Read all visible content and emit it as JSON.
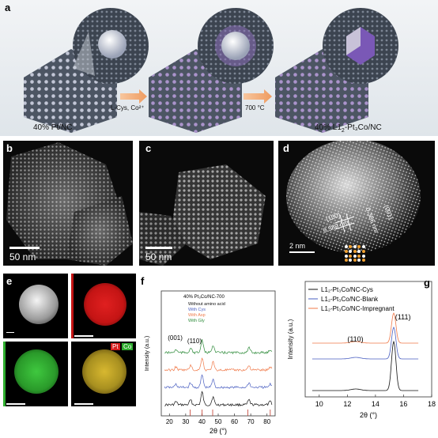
{
  "panel_a": {
    "letter": "a",
    "arrow1_label": "L-Cys, Co²⁺",
    "arrow2_label": "700 °C",
    "left_caption": "40% Pt/NC",
    "right_caption_pre": "40% L1",
    "right_caption_sub": "2",
    "right_caption_post": "-Pt₃Co/NC"
  },
  "panel_b": {
    "letter": "b",
    "scale": "50 nm"
  },
  "panel_c": {
    "letter": "c",
    "scale": "50 nm"
  },
  "panel_d": {
    "letter": "d",
    "scale": "2 nm",
    "plane1": "(100)",
    "plane2": "(001)",
    "d1": "0.389 nm",
    "d2": "0.386 nm"
  },
  "panel_e": {
    "letter": "e",
    "legend_pt": "Pt",
    "legend_co": "Co"
  },
  "panel_f": {
    "letter": "f",
    "peak_labels": [
      "(001)",
      "(110)"
    ],
    "chart_data": {
      "type": "line",
      "title": "40% Pt₃Co/NC-700",
      "xlabel": "2θ (°)",
      "ylabel": "Intensity (a.u.)",
      "xlim": [
        15,
        85
      ],
      "xticks": [
        20,
        30,
        40,
        50,
        60,
        70,
        80
      ],
      "series": [
        {
          "name": "Without amino acid",
          "color": "#111111",
          "offset": 0
        },
        {
          "name": "With Cys",
          "color": "#4a5fc1",
          "offset": 1
        },
        {
          "name": "With Asp",
          "color": "#f07a4a",
          "offset": 2
        },
        {
          "name": "With Gly",
          "color": "#2e8b3a",
          "offset": 3
        }
      ],
      "peaks": [
        24,
        33,
        40.1,
        46.8,
        68.9,
        82
      ],
      "ref_sticks": [
        32.8,
        40.1,
        46.6,
        68.2,
        82
      ]
    }
  },
  "panel_g": {
    "letter": "g",
    "peak_labels": [
      "(110)",
      "(111)"
    ],
    "chart_data": {
      "type": "line",
      "xlabel": "2θ (°)",
      "ylabel": "Intensity (a.u.)",
      "xlim": [
        9,
        18
      ],
      "xticks": [
        10,
        12,
        14,
        16,
        18
      ],
      "series": [
        {
          "name": "L1₂-Pt₃Co/NC-Cys",
          "color": "#111111"
        },
        {
          "name": "L1₂-Pt₃Co/NC-Blank",
          "color": "#4a5fc1"
        },
        {
          "name": "L1₂-Pt₃Co/NC-Impregnant",
          "color": "#f07a4a"
        }
      ],
      "peak_center": 15.3
    }
  },
  "colors": {
    "pt_map": "#d61e1e",
    "co_map": "#2fae2f",
    "accent": "#f0a060"
  }
}
